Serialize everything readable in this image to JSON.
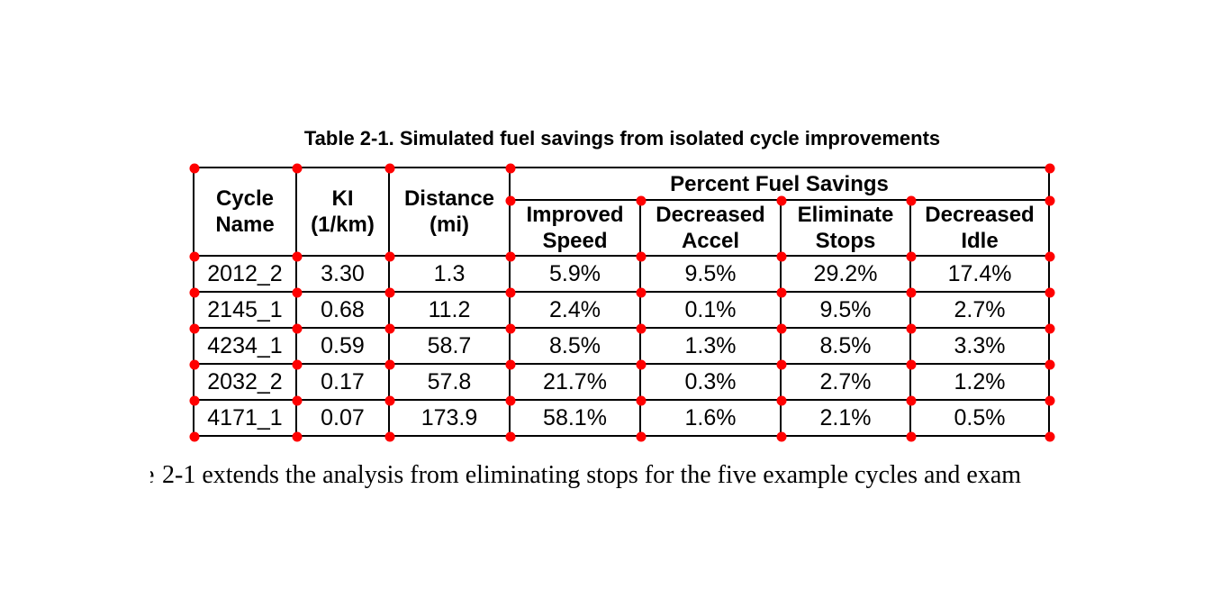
{
  "title": "Table 2-1. Simulated fuel savings from isolated cycle improvements",
  "table": {
    "group_header": "Percent Fuel Savings",
    "headers": [
      "Cycle\nName",
      "KI\n(1/km)",
      "Distance\n(mi)",
      "Improved\nSpeed",
      "Decreased\nAccel",
      "Eliminate\nStops",
      "Decreased\nIdle"
    ],
    "rows": [
      [
        "2012_2",
        "3.30",
        "1.3",
        "5.9%",
        "9.5%",
        "29.2%",
        "17.4%"
      ],
      [
        "2145_1",
        "0.68",
        "11.2",
        "2.4%",
        "0.1%",
        "9.5%",
        "2.7%"
      ],
      [
        "4234_1",
        "0.59",
        "58.7",
        "8.5%",
        "1.3%",
        "8.5%",
        "3.3%"
      ],
      [
        "2032_2",
        "0.17",
        "57.8",
        "21.7%",
        "0.3%",
        "2.7%",
        "1.2%"
      ],
      [
        "4171_1",
        "0.07",
        "173.9",
        "58.1%",
        "1.6%",
        "2.1%",
        "0.5%"
      ]
    ]
  },
  "annotations": {
    "marker_color": "#ff0000"
  },
  "body_text": {
    "leading_fragment": "e",
    "text": "2-1 extends the analysis from eliminating stops for the five example cycles and exam"
  }
}
